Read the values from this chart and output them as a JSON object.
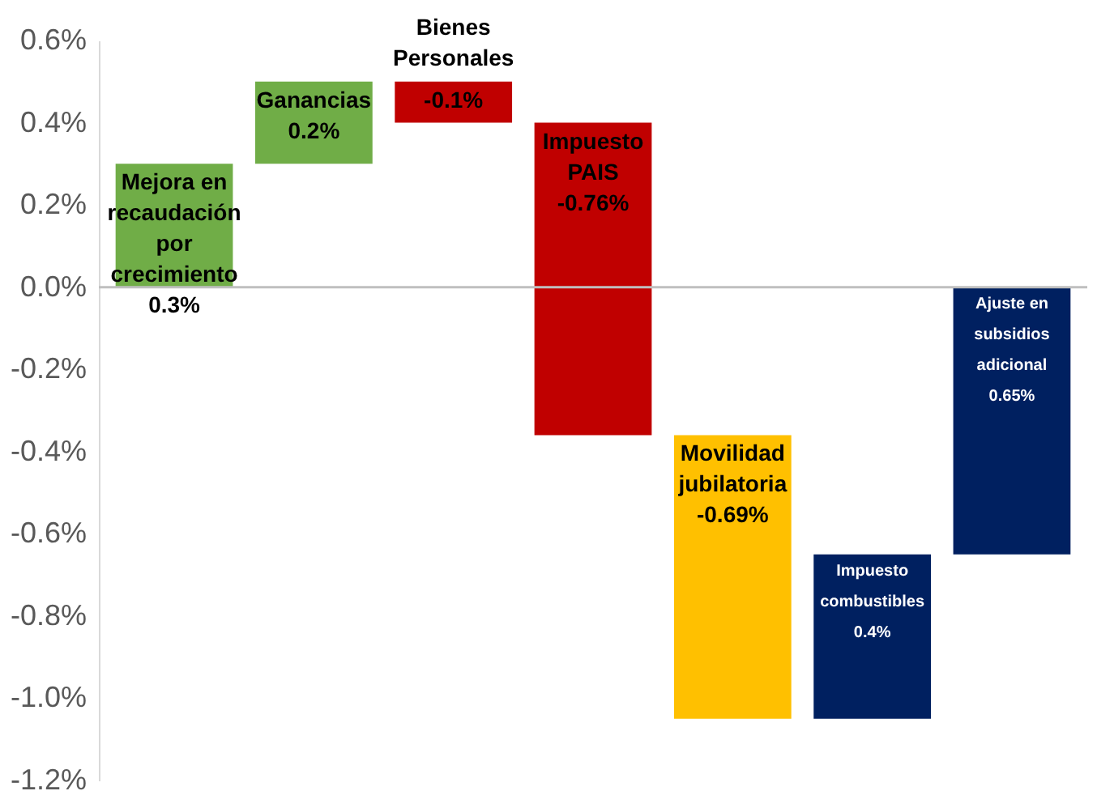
{
  "chart_data": {
    "type": "bar",
    "categories": [
      "Mejora en recaudación por crecimiento",
      "Ganancias",
      "Bienes Personales",
      "Impuesto PAIS",
      "Movilidad jubilatoria",
      "Impuesto combustibles",
      "Ajuste en subsidios adicional"
    ],
    "values": [
      0.3,
      0.2,
      -0.1,
      -0.76,
      -0.69,
      0.4,
      0.65
    ],
    "base": [
      0,
      0.3,
      0.5,
      0.4,
      -0.36,
      -1.05,
      -0.65
    ],
    "colors": [
      "#70ad47",
      "#70ad47",
      "#c00000",
      "#c00000",
      "#ffc000",
      "#002060",
      "#002060"
    ],
    "value_labels": [
      "0.3%",
      "0.2%",
      "-0.1%",
      "-0.76%",
      "-0.69%",
      "0.4%",
      "0.65%"
    ],
    "ylim": [
      -1.2,
      0.6
    ],
    "yticks": [
      {
        "value": -1.2,
        "label": "-1.2%"
      },
      {
        "value": -1.0,
        "label": "-1.0%"
      },
      {
        "value": -0.8,
        "label": "-0.8%"
      },
      {
        "value": -0.6,
        "label": "-0.6%"
      },
      {
        "value": -0.4,
        "label": "-0.4%"
      },
      {
        "value": -0.2,
        "label": "-0.2%"
      },
      {
        "value": 0.0,
        "label": "0.0%"
      },
      {
        "value": 0.2,
        "label": "0.2%"
      },
      {
        "value": 0.4,
        "label": "0.4%"
      },
      {
        "value": 0.6,
        "label": "0.6%"
      }
    ],
    "ref_lines": [
      {
        "axis": "y",
        "value": 0,
        "color": "#bfbfbf"
      }
    ],
    "tick_labels": "y",
    "grid": false
  }
}
